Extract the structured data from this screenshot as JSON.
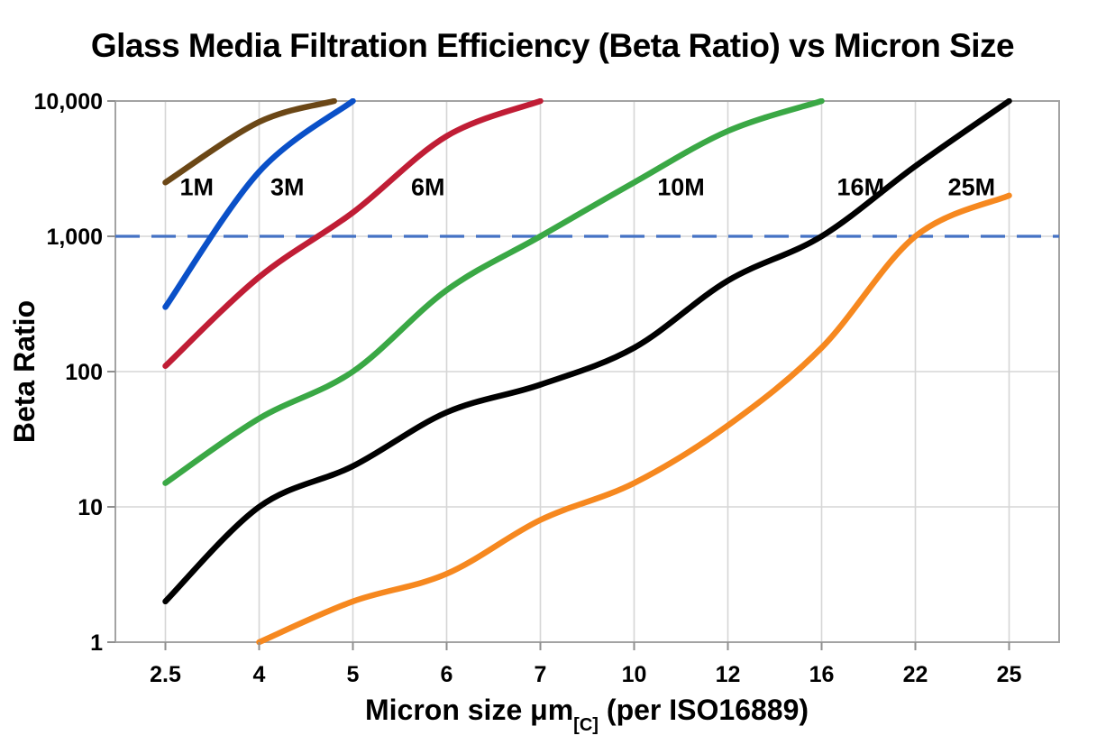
{
  "chart_data": {
    "type": "line",
    "title": "Glass Media Filtration Efficiency (Beta Ratio) vs Micron Size",
    "ylabel": "Beta Ratio",
    "xlabel": {
      "main": "Micron size μm",
      "sub": "[C]",
      "suffix": "(per ISO16889)"
    },
    "x_categories": [
      2.5,
      4,
      5,
      6,
      7,
      10,
      12,
      16,
      22,
      25
    ],
    "x_tick_labels": [
      "2.5",
      "4",
      "5",
      "6",
      "7",
      "10",
      "12",
      "16",
      "22",
      "25"
    ],
    "x_axis_spacing": "categorical-even",
    "y_scale": "log",
    "ylim": [
      1,
      10000
    ],
    "y_ticks": [
      {
        "v": 1,
        "label": "1"
      },
      {
        "v": 10,
        "label": "10"
      },
      {
        "v": 100,
        "label": "100"
      },
      {
        "v": 1000,
        "label": "1,000"
      },
      {
        "v": 10000,
        "label": "10,000"
      }
    ],
    "grid": true,
    "legend_position": "inline-labels",
    "threshold_line": {
      "v": 1000,
      "style": "dashed",
      "color": "#4472c4"
    },
    "series": [
      {
        "name": "1M",
        "color": "#6b4716",
        "label_at": {
          "x": 3.0,
          "v": 2300
        },
        "points": [
          [
            2.5,
            2500
          ],
          [
            4,
            7000
          ],
          [
            4.8,
            10000
          ]
        ]
      },
      {
        "name": "3M",
        "color": "#0a50c8",
        "label_at": {
          "x": 4.3,
          "v": 2300
        },
        "points": [
          [
            2.5,
            300
          ],
          [
            4,
            3000
          ],
          [
            5,
            10000
          ]
        ]
      },
      {
        "name": "6M",
        "color": "#c01d35",
        "label_at": {
          "x": 5.8,
          "v": 2300
        },
        "points": [
          [
            2.5,
            110
          ],
          [
            4,
            500
          ],
          [
            5,
            1500
          ],
          [
            6,
            5500
          ],
          [
            7,
            10000
          ]
        ]
      },
      {
        "name": "10M",
        "color": "#3aa845",
        "label_at": {
          "x": 11,
          "v": 2300
        },
        "points": [
          [
            2.5,
            15
          ],
          [
            4,
            45
          ],
          [
            5,
            100
          ],
          [
            6,
            400
          ],
          [
            7,
            1000
          ],
          [
            10,
            2500
          ],
          [
            12,
            6000
          ],
          [
            16,
            10000
          ]
        ]
      },
      {
        "name": "16M",
        "color": "#000000",
        "label_at": {
          "x": 18.5,
          "v": 2300
        },
        "points": [
          [
            2.5,
            2
          ],
          [
            4,
            10
          ],
          [
            5,
            20
          ],
          [
            6,
            50
          ],
          [
            7,
            80
          ],
          [
            10,
            150
          ],
          [
            12,
            470
          ],
          [
            16,
            1000
          ],
          [
            22,
            3300
          ],
          [
            25,
            10000
          ]
        ]
      },
      {
        "name": "25M",
        "color": "#f6881f",
        "label_at": {
          "x": 23.8,
          "v": 2300
        },
        "points": [
          [
            4,
            1
          ],
          [
            5,
            2
          ],
          [
            6,
            3.2
          ],
          [
            7,
            8
          ],
          [
            10,
            15
          ],
          [
            12,
            40
          ],
          [
            16,
            150
          ],
          [
            22,
            1000
          ],
          [
            25,
            2000
          ]
        ]
      }
    ]
  }
}
